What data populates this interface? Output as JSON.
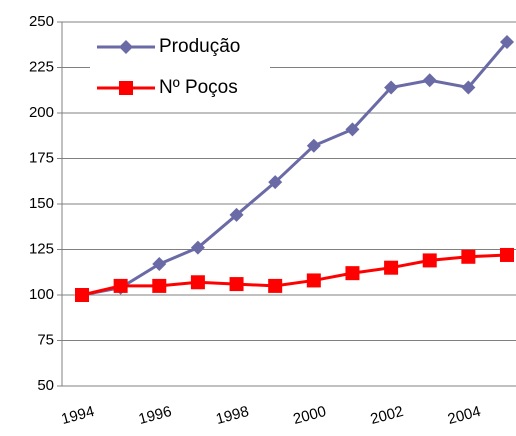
{
  "chart_data": {
    "type": "line",
    "categories": [
      "1994",
      null,
      "1996",
      null,
      "1998",
      null,
      "2000",
      null,
      "2002",
      null,
      "2004",
      null
    ],
    "series": [
      {
        "name": "Produção",
        "color": "#6a6aa6",
        "marker": "diamond",
        "values": [
          100,
          104,
          117,
          126,
          144,
          162,
          182,
          191,
          214,
          218,
          214,
          239
        ]
      },
      {
        "name": "Nº Poços",
        "color": "#ff0000",
        "marker": "square",
        "values": [
          100,
          105,
          105,
          107,
          106,
          105,
          108,
          112,
          115,
          119,
          121,
          122
        ]
      }
    ],
    "ylim": [
      50,
      250
    ],
    "yticks": [
      50,
      75,
      100,
      125,
      150,
      175,
      200,
      225,
      250
    ],
    "grid": true,
    "legend": "top-left"
  }
}
